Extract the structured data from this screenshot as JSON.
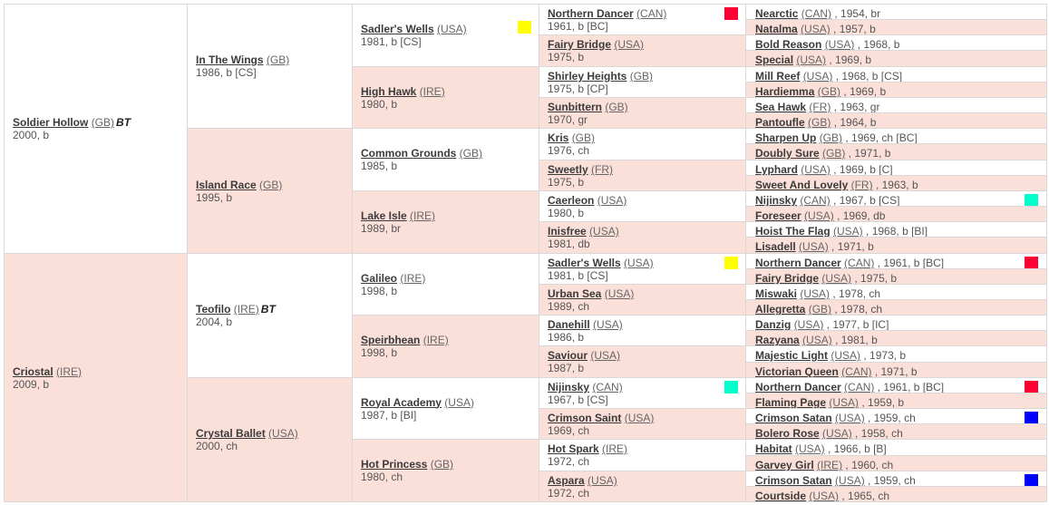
{
  "gen1": [
    {
      "name": "Soldier Hollow",
      "country": "(GB)",
      "info": "2000, b",
      "bt": "BT",
      "sex": "male"
    },
    {
      "name": "Criostal",
      "country": "(IRE)",
      "info": "2009, b",
      "sex": "female"
    }
  ],
  "gen2": [
    {
      "name": "In The Wings",
      "country": "(GB)",
      "info": "1986, b [CS]",
      "sex": "male"
    },
    {
      "name": "Island Race",
      "country": "(GB)",
      "info": "1995, b",
      "sex": "female"
    },
    {
      "name": "Teofilo",
      "country": "(IRE)",
      "info": "2004, b",
      "bt": "BT",
      "sex": "male"
    },
    {
      "name": "Crystal Ballet",
      "country": "(USA)",
      "info": "2000, ch",
      "sex": "female"
    }
  ],
  "gen3": [
    {
      "name": "Sadler's Wells",
      "country": "(USA)",
      "info": "1981, b [CS]",
      "sex": "male",
      "marker": "yellow"
    },
    {
      "name": "High Hawk",
      "country": "(IRE)",
      "info": "1980, b",
      "sex": "female"
    },
    {
      "name": "Common Grounds",
      "country": "(GB)",
      "info": "1985, b",
      "sex": "male"
    },
    {
      "name": "Lake Isle",
      "country": "(IRE)",
      "info": "1989, br",
      "sex": "female"
    },
    {
      "name": "Galileo",
      "country": "(IRE)",
      "info": "1998, b",
      "sex": "male"
    },
    {
      "name": "Speirbhean",
      "country": "(IRE)",
      "info": "1998, b",
      "sex": "female"
    },
    {
      "name": "Royal Academy",
      "country": "(USA)",
      "info": "1987, b [BI]",
      "sex": "male"
    },
    {
      "name": "Hot Princess",
      "country": "(GB)",
      "info": "1980, ch",
      "sex": "female"
    }
  ],
  "gen4": [
    {
      "name": "Northern Dancer",
      "country": "(CAN)",
      "info": "1961, b [BC]",
      "sex": "male",
      "marker": "red"
    },
    {
      "name": "Fairy Bridge",
      "country": "(USA)",
      "info": "1975, b",
      "sex": "female"
    },
    {
      "name": "Shirley Heights",
      "country": "(GB)",
      "info": "1975, b [CP]",
      "sex": "male"
    },
    {
      "name": "Sunbittern",
      "country": "(GB)",
      "info": "1970, gr",
      "sex": "female"
    },
    {
      "name": "Kris",
      "country": "(GB)",
      "info": "1976, ch",
      "sex": "male"
    },
    {
      "name": "Sweetly",
      "country": "(FR)",
      "info": "1975, b",
      "sex": "female"
    },
    {
      "name": "Caerleon",
      "country": "(USA)",
      "info": "1980, b",
      "sex": "male"
    },
    {
      "name": "Inisfree",
      "country": "(USA)",
      "info": "1981, db",
      "sex": "female"
    },
    {
      "name": "Sadler's Wells",
      "country": "(USA)",
      "info": "1981, b [CS]",
      "sex": "male",
      "marker": "yellow"
    },
    {
      "name": "Urban Sea",
      "country": "(USA)",
      "info": "1989, ch",
      "sex": "female"
    },
    {
      "name": "Danehill",
      "country": "(USA)",
      "info": "1986, b",
      "sex": "male"
    },
    {
      "name": "Saviour",
      "country": "(USA)",
      "info": "1987, b",
      "sex": "female"
    },
    {
      "name": "Nijinsky",
      "country": "(CAN)",
      "info": "1967, b [CS]",
      "sex": "male",
      "marker": "cyan"
    },
    {
      "name": "Crimson Saint",
      "country": "(USA)",
      "info": "1969, ch",
      "sex": "female"
    },
    {
      "name": "Hot Spark",
      "country": "(IRE)",
      "info": "1972, ch",
      "sex": "male"
    },
    {
      "name": "Aspara",
      "country": "(USA)",
      "info": "1972, ch",
      "sex": "female"
    }
  ],
  "gen5": [
    {
      "name": "Nearctic",
      "country": "(CAN)",
      "info": ", 1954, br",
      "sex": "male"
    },
    {
      "name": "Natalma",
      "country": "(USA)",
      "info": ", 1957, b",
      "sex": "female"
    },
    {
      "name": "Bold Reason",
      "country": "(USA)",
      "info": ", 1968, b",
      "sex": "male"
    },
    {
      "name": "Special",
      "country": "(USA)",
      "info": ", 1969, b",
      "sex": "female"
    },
    {
      "name": "Mill Reef",
      "country": "(USA)",
      "info": ", 1968, b [CS]",
      "sex": "male"
    },
    {
      "name": "Hardiemma",
      "country": "(GB)",
      "info": ", 1969, b",
      "sex": "female"
    },
    {
      "name": "Sea Hawk",
      "country": "(FR)",
      "info": ", 1963, gr",
      "sex": "male"
    },
    {
      "name": "Pantoufle",
      "country": "(GB)",
      "info": ", 1964, b",
      "sex": "female"
    },
    {
      "name": "Sharpen Up",
      "country": "(GB)",
      "info": ", 1969, ch [BC]",
      "sex": "male"
    },
    {
      "name": "Doubly Sure",
      "country": "(GB)",
      "info": ", 1971, b",
      "sex": "female"
    },
    {
      "name": "Lyphard",
      "country": "(USA)",
      "info": ", 1969, b [C]",
      "sex": "male"
    },
    {
      "name": "Sweet And Lovely",
      "country": "(FR)",
      "info": ", 1963, b",
      "sex": "female"
    },
    {
      "name": "Nijinsky",
      "country": "(CAN)",
      "info": ", 1967, b [CS]",
      "sex": "male",
      "marker": "cyan"
    },
    {
      "name": "Foreseer",
      "country": "(USA)",
      "info": ", 1969, db",
      "sex": "female"
    },
    {
      "name": "Hoist The Flag",
      "country": "(USA)",
      "info": ", 1968, b [BI]",
      "sex": "male"
    },
    {
      "name": "Lisadell",
      "country": "(USA)",
      "info": ", 1971, b",
      "sex": "female"
    },
    {
      "name": "Northern Dancer",
      "country": "(CAN)",
      "info": ", 1961, b [BC]",
      "sex": "male",
      "marker": "red"
    },
    {
      "name": "Fairy Bridge",
      "country": "(USA)",
      "info": ", 1975, b",
      "sex": "female"
    },
    {
      "name": "Miswaki",
      "country": "(USA)",
      "info": ", 1978, ch",
      "sex": "male"
    },
    {
      "name": "Allegretta",
      "country": "(GB)",
      "info": ", 1978, ch",
      "sex": "female"
    },
    {
      "name": "Danzig",
      "country": "(USA)",
      "info": ", 1977, b [IC]",
      "sex": "male"
    },
    {
      "name": "Razyana",
      "country": "(USA)",
      "info": ", 1981, b",
      "sex": "female"
    },
    {
      "name": "Majestic Light",
      "country": "(USA)",
      "info": ", 1973, b",
      "sex": "male"
    },
    {
      "name": "Victorian Queen",
      "country": "(CAN)",
      "info": ", 1971, b",
      "sex": "female"
    },
    {
      "name": "Northern Dancer",
      "country": "(CAN)",
      "info": ", 1961, b [BC]",
      "sex": "male",
      "marker": "red"
    },
    {
      "name": "Flaming Page",
      "country": "(USA)",
      "info": ", 1959, b",
      "sex": "female"
    },
    {
      "name": "Crimson Satan",
      "country": "(USA)",
      "info": ", 1959, ch",
      "sex": "male",
      "marker": "blue"
    },
    {
      "name": "Bolero Rose",
      "country": "(USA)",
      "info": ", 1958, ch",
      "sex": "female"
    },
    {
      "name": "Habitat",
      "country": "(USA)",
      "info": ", 1966, b [B]",
      "sex": "male"
    },
    {
      "name": "Garvey Girl",
      "country": "(IRE)",
      "info": ", 1960, ch",
      "sex": "female"
    },
    {
      "name": "Crimson Satan",
      "country": "(USA)",
      "info": ", 1959, ch",
      "sex": "male",
      "marker": "blue"
    },
    {
      "name": "Courtside",
      "country": "(USA)",
      "info": ", 1965, ch",
      "sex": "female"
    }
  ],
  "colors": {
    "male_bg": "#ffffff",
    "female_bg": "#fbe0da",
    "yellow": "#ffff00",
    "red": "#ff0033",
    "cyan": "#00ffcc",
    "blue": "#0000ff"
  }
}
